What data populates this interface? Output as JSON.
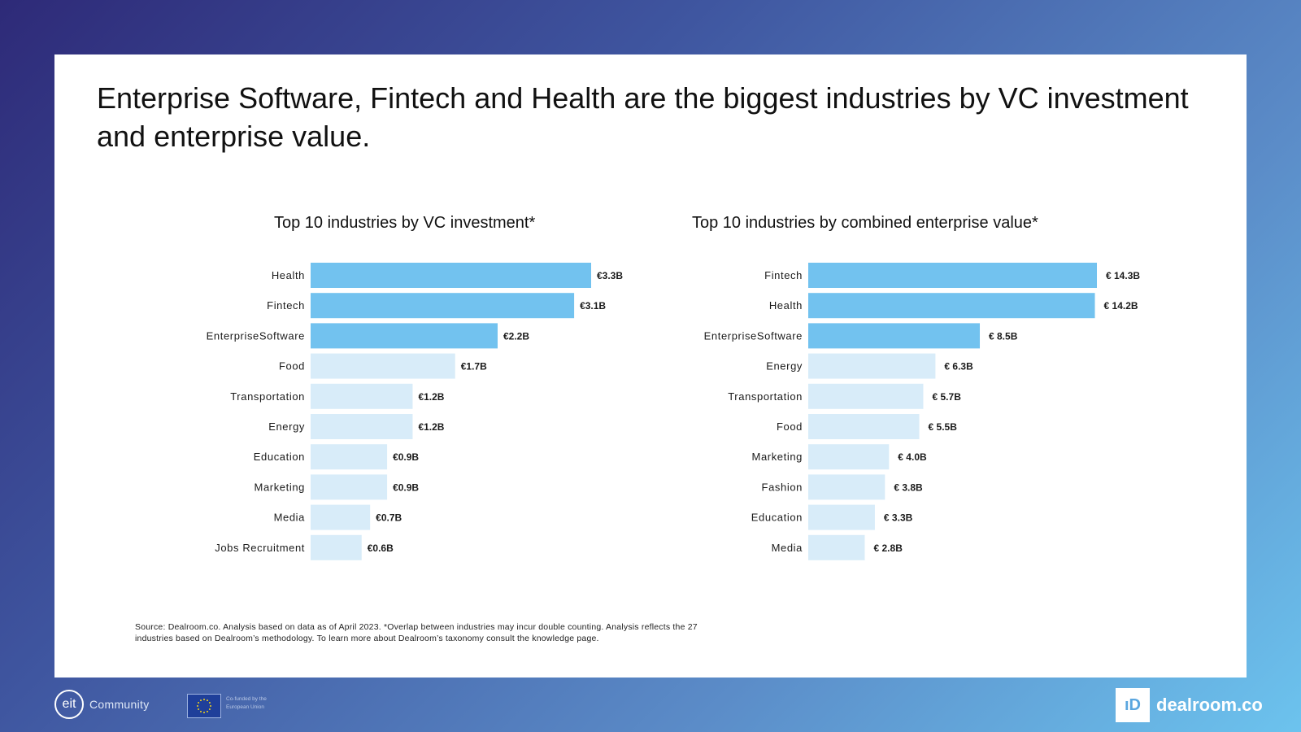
{
  "headline": "Enterprise Software, Fintech and Health are the biggest industries by VC investment and enterprise value.",
  "colors": {
    "highlight": "#72c2ef",
    "muted": "#d8ecf9",
    "text": "#1a1a1a"
  },
  "chart_data": [
    {
      "type": "bar",
      "orientation": "horizontal",
      "title": "Top 10 industries by VC investment*",
      "unit": "€B",
      "categories": [
        "Health",
        "Fintech",
        "EnterpriseSoftware",
        "Food",
        "Transportation",
        "Energy",
        "Education",
        "Marketing",
        "Media",
        "Jobs Recruitment"
      ],
      "values": [
        3.3,
        3.1,
        2.2,
        1.7,
        1.2,
        1.2,
        0.9,
        0.9,
        0.7,
        0.6
      ],
      "labels": [
        "€3.3B",
        "€3.1B",
        "€2.2B",
        "€1.7B",
        "€1.2B",
        "€1.2B",
        "€0.9B",
        "€0.9B",
        "€0.7B",
        "€0.6B"
      ],
      "highlighted": [
        true,
        true,
        true,
        false,
        false,
        false,
        false,
        false,
        false,
        false
      ],
      "xlim": [
        0,
        3.3
      ]
    },
    {
      "type": "bar",
      "orientation": "horizontal",
      "title": "Top 10 industries by combined enterprise value*",
      "unit": "€B",
      "categories": [
        "Fintech",
        "Health",
        "EnterpriseSoftware",
        "Energy",
        "Transportation",
        "Food",
        "Marketing",
        "Fashion",
        "Education",
        "Media"
      ],
      "values": [
        14.3,
        14.2,
        8.5,
        6.3,
        5.7,
        5.5,
        4.0,
        3.8,
        3.3,
        2.8
      ],
      "labels": [
        "€ 14.3B",
        "€ 14.2B",
        "€ 8.5B",
        "€ 6.3B",
        "€ 5.7B",
        "€ 5.5B",
        "€ 4.0B",
        "€ 3.8B",
        "€ 3.3B",
        "€ 2.8B"
      ],
      "highlighted": [
        true,
        true,
        true,
        false,
        false,
        false,
        false,
        false,
        false,
        false
      ],
      "xlim": [
        0,
        14.3
      ]
    }
  ],
  "source_text": "Source: Dealroom.co. Analysis based on data as of April 2023. *Overlap between industries may incur double counting. Analysis reflects the 27 industries based on Dealroom’s methodology. To learn more about Dealroom’s taxonomy consult the knowledge page.",
  "footer": {
    "eit_mark": "eit",
    "eit_label": "Community",
    "eu_text": "Co-funded by the European Union",
    "dealroom_mark": "ıD",
    "dealroom_label": "dealroom.co"
  }
}
